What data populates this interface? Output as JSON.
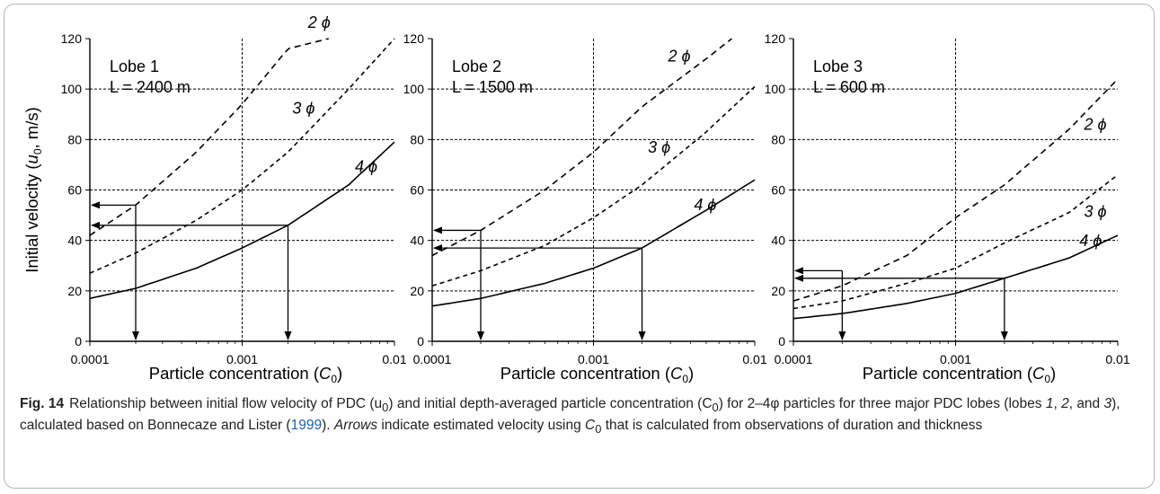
{
  "chart_data": [
    {
      "type": "line",
      "x_scale": "log",
      "xlim": [
        0.0001,
        0.01
      ],
      "ylim": [
        0,
        120
      ],
      "x_ticks": [
        "0.0001",
        "0.001",
        "0.01"
      ],
      "y_ticks": [
        "0",
        "20",
        "40",
        "60",
        "80",
        "100",
        "120"
      ],
      "xlabel": "Particle concentration (C0)",
      "ylabel": "Initial velocity (u0, m/s)",
      "grid": true,
      "annotations": [
        "Lobe 1",
        "L = 2400 m"
      ],
      "series": [
        {
          "name": "2 ϕ",
          "x": [
            0.0001,
            0.0002,
            0.0005,
            0.001,
            0.002,
            0.0037
          ],
          "y": [
            42,
            54,
            75,
            94,
            116,
            120
          ]
        },
        {
          "name": "3 ϕ",
          "x": [
            0.0001,
            0.0002,
            0.0005,
            0.001,
            0.002,
            0.005,
            0.01
          ],
          "y": [
            27,
            35,
            48,
            60,
            75,
            100,
            120
          ]
        },
        {
          "name": "4 ϕ",
          "x": [
            0.0001,
            0.0002,
            0.0005,
            0.001,
            0.002,
            0.005,
            0.01
          ],
          "y": [
            17,
            21,
            29,
            37,
            46,
            62,
            79
          ]
        }
      ],
      "arrows": [
        {
          "x": 0.0002,
          "y": 54
        },
        {
          "x": 0.002,
          "y": 46
        }
      ]
    },
    {
      "type": "line",
      "x_scale": "log",
      "xlim": [
        0.0001,
        0.01
      ],
      "ylim": [
        0,
        120
      ],
      "x_ticks": [
        "0.0001",
        "0.001",
        "0.01"
      ],
      "y_ticks": [
        "0",
        "20",
        "40",
        "60",
        "80",
        "100",
        "120"
      ],
      "xlabel": "Particle concentration (C0)",
      "ylabel": "",
      "grid": true,
      "annotations": [
        "Lobe 2",
        "L = 1500 m"
      ],
      "series": [
        {
          "name": "2 ϕ",
          "x": [
            0.0001,
            0.0002,
            0.0005,
            0.001,
            0.002,
            0.005,
            0.0072
          ],
          "y": [
            34,
            44,
            60,
            75,
            93,
            112,
            120
          ]
        },
        {
          "name": "3 ϕ",
          "x": [
            0.0001,
            0.0002,
            0.0005,
            0.001,
            0.002,
            0.005,
            0.01
          ],
          "y": [
            22,
            28,
            38,
            49,
            62,
            83,
            101
          ]
        },
        {
          "name": "4 ϕ",
          "x": [
            0.0001,
            0.0002,
            0.0005,
            0.001,
            0.002,
            0.005,
            0.01
          ],
          "y": [
            14,
            17,
            23,
            29,
            37,
            52,
            64
          ]
        }
      ],
      "arrows": [
        {
          "x": 0.0002,
          "y": 44
        },
        {
          "x": 0.002,
          "y": 37
        }
      ]
    },
    {
      "type": "line",
      "x_scale": "log",
      "xlim": [
        0.0001,
        0.01
      ],
      "ylim": [
        0,
        120
      ],
      "x_ticks": [
        "0.0001",
        "0.001",
        "0.01"
      ],
      "y_ticks": [
        "0",
        "20",
        "40",
        "60",
        "80",
        "100",
        "120"
      ],
      "xlabel": "Particle concentration (C0)",
      "ylabel": "",
      "grid": true,
      "annotations": [
        "Lobe 3",
        "L = 600 m"
      ],
      "series": [
        {
          "name": "2 ϕ",
          "x": [
            0.0001,
            0.0002,
            0.0005,
            0.001,
            0.002,
            0.005,
            0.01
          ],
          "y": [
            16,
            22,
            34,
            49,
            62,
            84,
            104
          ]
        },
        {
          "name": "3 ϕ",
          "x": [
            0.0001,
            0.0002,
            0.0005,
            0.001,
            0.002,
            0.005,
            0.01
          ],
          "y": [
            13,
            16,
            23,
            29,
            39,
            51,
            66
          ]
        },
        {
          "name": "4 ϕ",
          "x": [
            0.0001,
            0.0002,
            0.0005,
            0.001,
            0.002,
            0.005,
            0.01
          ],
          "y": [
            9,
            11,
            15,
            19,
            25,
            33,
            42
          ]
        }
      ],
      "arrows": [
        {
          "x": 0.0002,
          "y": 28
        },
        {
          "x": 0.002,
          "y": 25
        }
      ]
    }
  ],
  "caption": {
    "fig_label": "Fig. 14",
    "part1": "Relationship between initial flow velocity of PDC (u",
    "sub1": "0",
    "part2": ") and initial depth-averaged particle concentration (C",
    "sub2": "0",
    "part3": ") for 2–4φ particles for three major PDC lobes (lobes ",
    "lobe_1": "1",
    "sep1": ", ",
    "lobe_2": "2",
    "sep2": ", and ",
    "lobe_3": "3",
    "part4": "), calculated based on Bonnecaze and Lister (",
    "ref_year": "1999",
    "part5": "). ",
    "arrows_word": "Arrows",
    "part6": " indicate estimated velocity using ",
    "c_letter": "C",
    "sub3": "0",
    "part7": " that is calculated from observations of duration and thickness"
  }
}
